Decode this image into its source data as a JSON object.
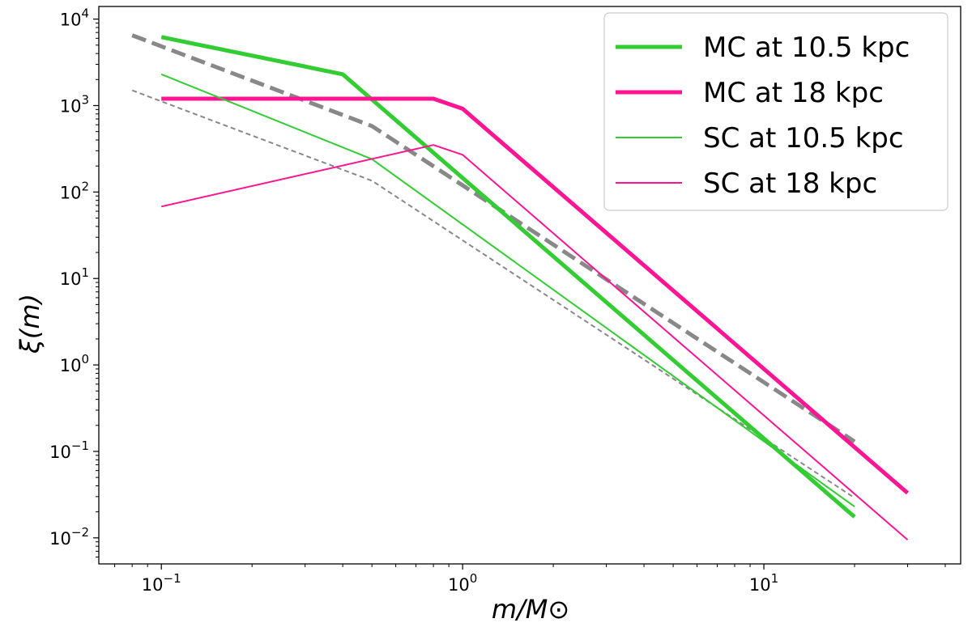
{
  "chart_data": {
    "type": "line",
    "xscale": "log",
    "yscale": "log",
    "xlim": [
      0.062,
      45
    ],
    "ylim": [
      0.005,
      14000
    ],
    "xlabel": "m/M⊙",
    "ylabel": "ξ(m)",
    "x_ticks": [
      {
        "value": 0.1,
        "base": "10",
        "exp": "−1"
      },
      {
        "value": 1,
        "base": "10",
        "exp": "0"
      },
      {
        "value": 10,
        "base": "10",
        "exp": "1"
      }
    ],
    "y_ticks": [
      {
        "value": 10000,
        "base": "10",
        "exp": "4"
      },
      {
        "value": 1000,
        "base": "10",
        "exp": "3"
      },
      {
        "value": 100,
        "base": "10",
        "exp": "2"
      },
      {
        "value": 10,
        "base": "10",
        "exp": "1"
      },
      {
        "value": 1,
        "base": "10",
        "exp": "0"
      },
      {
        "value": 0.1,
        "base": "10",
        "exp": "−1"
      },
      {
        "value": 0.01,
        "base": "10",
        "exp": "−2"
      }
    ],
    "legend_position": "top-right",
    "series": [
      {
        "name": "MC at 10.5 kpc",
        "color": "#33cc33",
        "style": "solid",
        "weight": "thick",
        "in_legend": true,
        "x": [
          0.1,
          0.4,
          20
        ],
        "y": [
          6200,
          2300,
          0.0175
        ]
      },
      {
        "name": "MC at 18 kpc",
        "color": "#ff1493",
        "style": "solid",
        "weight": "thick",
        "in_legend": true,
        "x": [
          0.1,
          0.8,
          1.0,
          30
        ],
        "y": [
          1200,
          1200,
          920,
          0.033
        ]
      },
      {
        "name": "SC at 10.5 kpc",
        "color": "#33cc33",
        "style": "solid",
        "weight": "thin",
        "in_legend": true,
        "x": [
          0.1,
          0.5,
          20
        ],
        "y": [
          2300,
          240,
          0.023
        ]
      },
      {
        "name": "SC at 18 kpc",
        "color": "#ff1493",
        "style": "solid",
        "weight": "thin",
        "in_legend": true,
        "x": [
          0.1,
          0.8,
          1.0,
          30
        ],
        "y": [
          68,
          350,
          270,
          0.0095
        ]
      },
      {
        "name": "reference (thick dashed)",
        "color": "#888888",
        "style": "dashed",
        "weight": "thick",
        "in_legend": false,
        "x": [
          0.08,
          0.5,
          20
        ],
        "y": [
          6500,
          580,
          0.13
        ]
      },
      {
        "name": "reference (thin dashed)",
        "color": "#888888",
        "style": "dashed",
        "weight": "thin",
        "in_legend": false,
        "x": [
          0.08,
          0.5,
          20
        ],
        "y": [
          1500,
          135,
          0.029
        ]
      }
    ]
  }
}
